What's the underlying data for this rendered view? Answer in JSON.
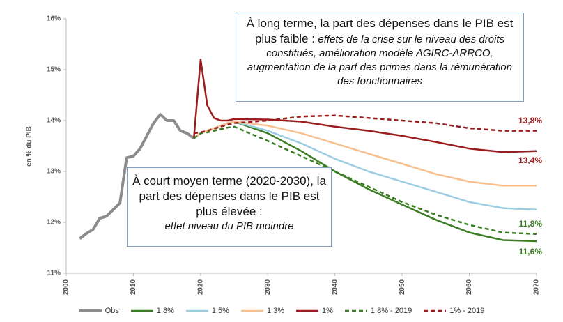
{
  "chart_data": {
    "type": "line",
    "y_label": "en % du PIB",
    "x": [
      2002,
      2003,
      2004,
      2005,
      2006,
      2007,
      2008,
      2009,
      2010,
      2011,
      2012,
      2013,
      2014,
      2015,
      2016,
      2017,
      2018,
      2019,
      2020,
      2021,
      2022,
      2023,
      2024,
      2025,
      2030,
      2035,
      2040,
      2045,
      2050,
      2055,
      2060,
      2065,
      2070
    ],
    "xlim": [
      2000,
      2070
    ],
    "xticks": [
      2000,
      2010,
      2020,
      2030,
      2040,
      2050,
      2060,
      2070
    ],
    "ylim": [
      11,
      16
    ],
    "yticks": [
      {
        "value": 11,
        "label": "11%"
      },
      {
        "value": 12,
        "label": "12%"
      },
      {
        "value": 13,
        "label": "13%"
      },
      {
        "value": 14,
        "label": "14%"
      },
      {
        "value": 15,
        "label": "15%"
      },
      {
        "value": 16,
        "label": "16%"
      }
    ],
    "series": [
      {
        "name": "Obs",
        "color": "#8c8c8c",
        "width": 4,
        "dash": false,
        "values": [
          11.68,
          11.78,
          11.86,
          12.08,
          12.12,
          12.25,
          12.38,
          13.27,
          13.3,
          13.45,
          13.7,
          13.95,
          14.12,
          14.0,
          14.0,
          13.8,
          13.75,
          13.65,
          null,
          null,
          null,
          null,
          null,
          null,
          null,
          null,
          null,
          null,
          null,
          null,
          null,
          null,
          null
        ]
      },
      {
        "name": "1,8%",
        "color": "#3a7d22",
        "width": 2.5,
        "dash": false,
        "end_label": "11,6%",
        "values": [
          null,
          null,
          null,
          null,
          null,
          null,
          null,
          null,
          null,
          null,
          null,
          null,
          null,
          null,
          null,
          null,
          null,
          13.65,
          13.75,
          13.8,
          13.85,
          13.9,
          13.95,
          13.98,
          13.75,
          13.4,
          13.0,
          12.65,
          12.35,
          12.05,
          11.8,
          11.65,
          11.63
        ]
      },
      {
        "name": "1,5%",
        "color": "#9dcde3",
        "width": 2.5,
        "dash": false,
        "values": [
          null,
          null,
          null,
          null,
          null,
          null,
          null,
          null,
          null,
          null,
          null,
          null,
          null,
          null,
          null,
          null,
          null,
          13.65,
          13.75,
          13.8,
          13.85,
          13.9,
          13.95,
          13.98,
          13.8,
          13.55,
          13.25,
          13.0,
          12.8,
          12.6,
          12.4,
          12.28,
          12.25
        ]
      },
      {
        "name": "1,3%",
        "color": "#f8c08f",
        "width": 2.5,
        "dash": false,
        "values": [
          null,
          null,
          null,
          null,
          null,
          null,
          null,
          null,
          null,
          null,
          null,
          null,
          null,
          null,
          null,
          null,
          null,
          13.65,
          13.75,
          13.8,
          13.85,
          13.9,
          13.95,
          13.98,
          13.9,
          13.75,
          13.55,
          13.35,
          13.15,
          12.95,
          12.8,
          12.72,
          12.72
        ]
      },
      {
        "name": "1%",
        "color": "#9b1c1c",
        "width": 2.5,
        "dash": false,
        "end_label": "13,4%",
        "values": [
          null,
          null,
          null,
          null,
          null,
          null,
          null,
          null,
          null,
          null,
          null,
          null,
          null,
          null,
          null,
          null,
          null,
          13.65,
          15.2,
          14.3,
          14.05,
          14.0,
          14.0,
          14.03,
          14.02,
          13.98,
          13.88,
          13.8,
          13.7,
          13.58,
          13.45,
          13.38,
          13.4
        ]
      },
      {
        "name": "1,8% - 2019",
        "color": "#3a7d22",
        "width": 2.5,
        "dash": true,
        "end_label": "11,8%",
        "values": [
          null,
          null,
          null,
          null,
          null,
          null,
          null,
          null,
          null,
          null,
          null,
          null,
          null,
          null,
          null,
          null,
          null,
          13.65,
          13.75,
          13.77,
          13.8,
          13.83,
          13.86,
          13.88,
          13.6,
          13.3,
          13.0,
          12.7,
          12.4,
          12.15,
          11.95,
          11.8,
          11.77
        ]
      },
      {
        "name": "1% - 2019",
        "color": "#9b1c1c",
        "width": 2.5,
        "dash": true,
        "end_label": "13,8%",
        "values": [
          null,
          null,
          null,
          null,
          null,
          null,
          null,
          null,
          null,
          null,
          null,
          null,
          null,
          null,
          null,
          null,
          null,
          13.75,
          13.77,
          13.8,
          13.84,
          13.88,
          13.92,
          13.95,
          14.0,
          14.08,
          14.1,
          14.05,
          14.0,
          13.95,
          13.85,
          13.8,
          13.8
        ]
      }
    ],
    "annotations": [
      {
        "text": "À long terme, la part des dépenses dans le PIB est plus faible :",
        "detail": "effets de la crise sur le niveau des droits constitués, amélioration modèle AGIRC-ARRCO, augmentation de la part des primes dans la rémunération des fonctionnaires"
      },
      {
        "text": "À court moyen terme (2020-2030), la part des dépenses dans le PIB est plus élevée :",
        "detail": "effet niveau du PIB moindre"
      }
    ]
  }
}
